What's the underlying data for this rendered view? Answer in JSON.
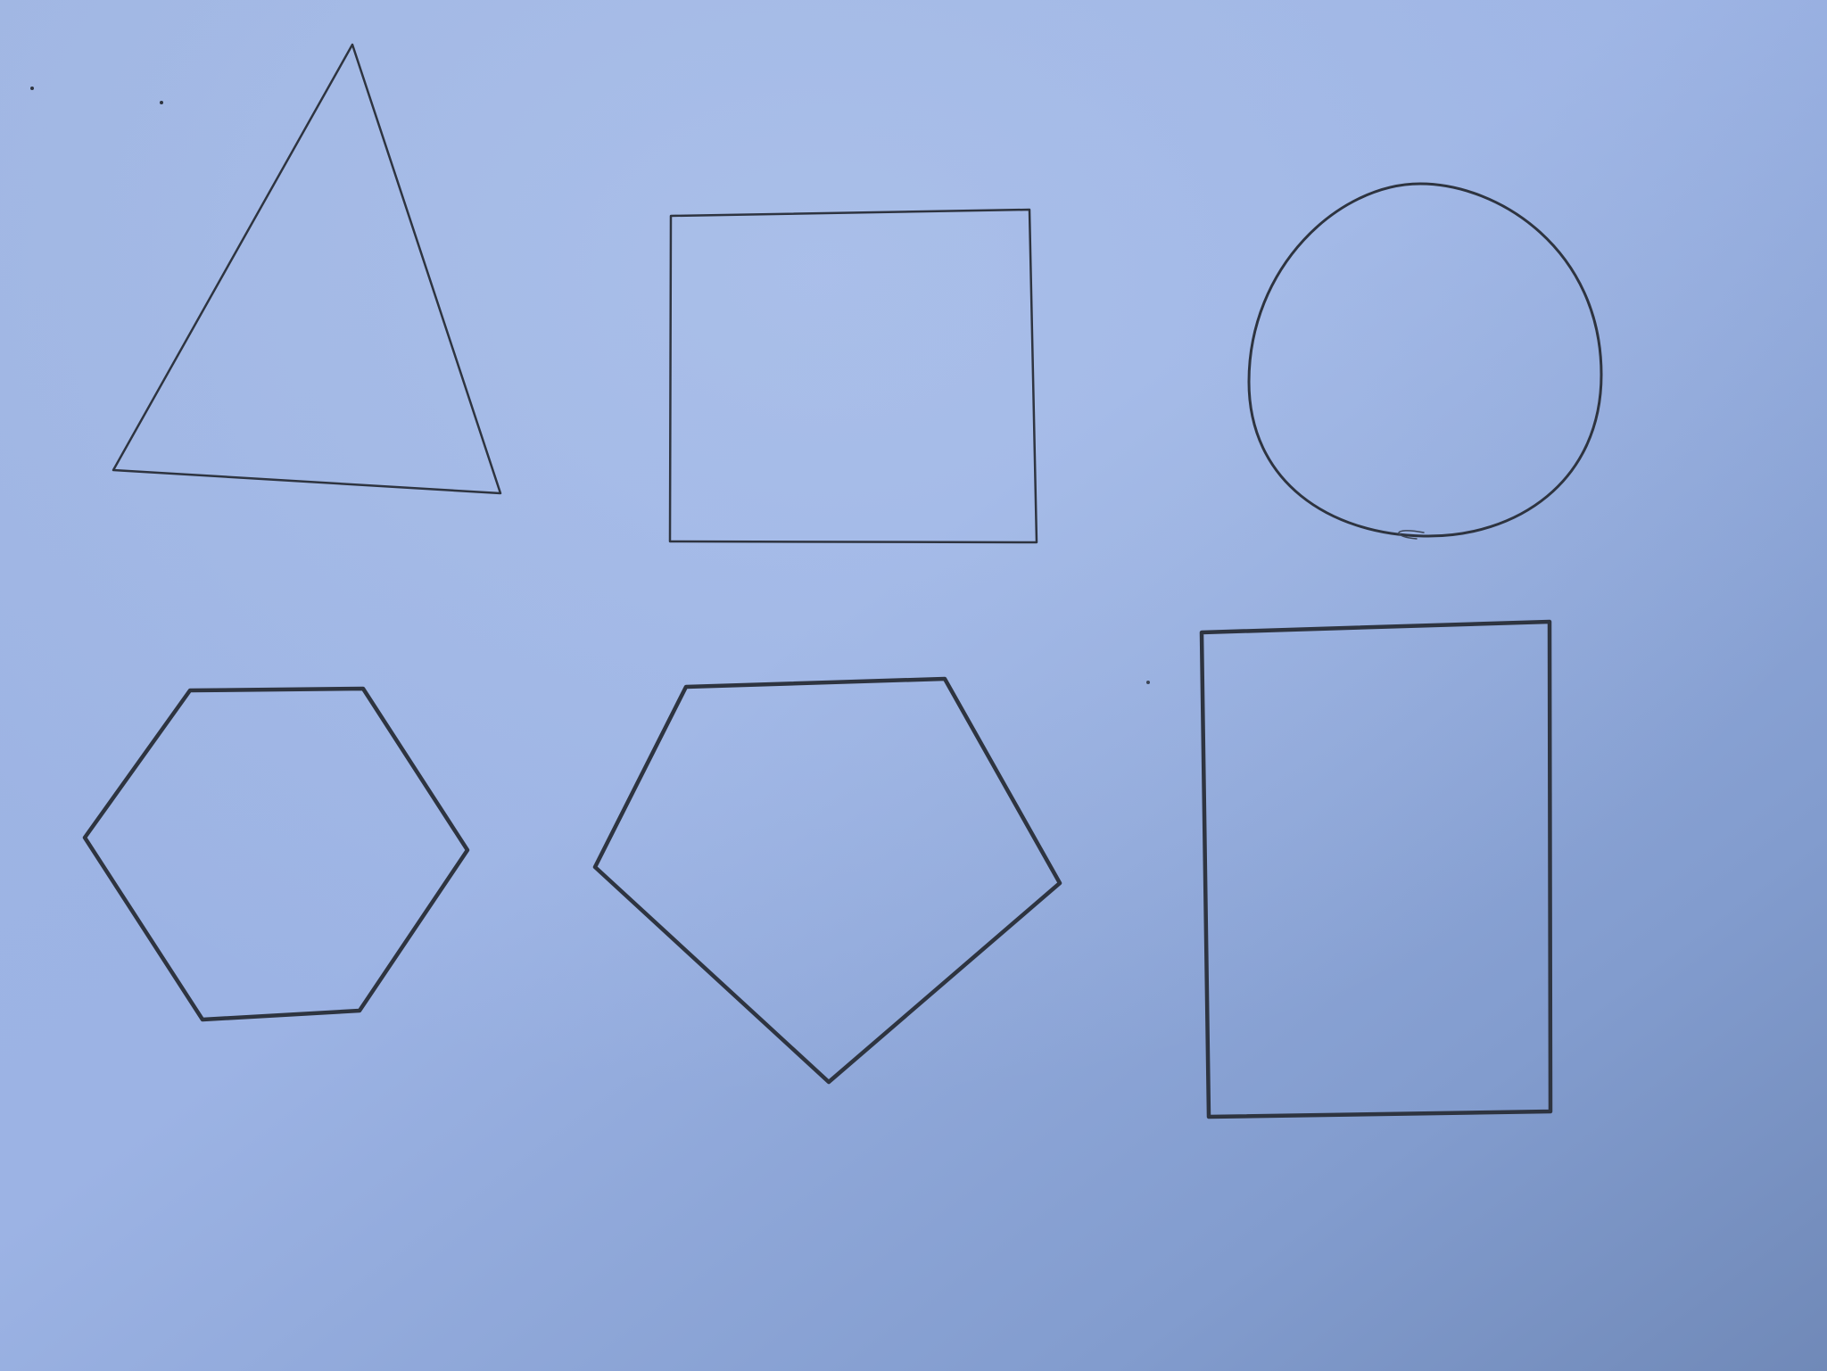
{
  "scene": {
    "subject": "hand-drawn-geometric-shapes",
    "colors": {
      "paper_light": "#a7bde6",
      "paper_mid": "#8fa8d8",
      "paper_dark": "#7590c0",
      "pencil": "#2e3440",
      "pencil_soft": "#3c4556"
    },
    "shapes": [
      {
        "name": "triangle",
        "row": 1,
        "column": 1,
        "stroke": "thin"
      },
      {
        "name": "square",
        "row": 1,
        "column": 2,
        "stroke": "thin"
      },
      {
        "name": "circle",
        "row": 1,
        "column": 3,
        "stroke": "thin"
      },
      {
        "name": "hexagon",
        "row": 2,
        "column": 1,
        "stroke": "bold"
      },
      {
        "name": "pentagon",
        "row": 2,
        "column": 2,
        "stroke": "bold"
      },
      {
        "name": "rectangle",
        "row": 2,
        "column": 3,
        "stroke": "bold"
      }
    ]
  }
}
